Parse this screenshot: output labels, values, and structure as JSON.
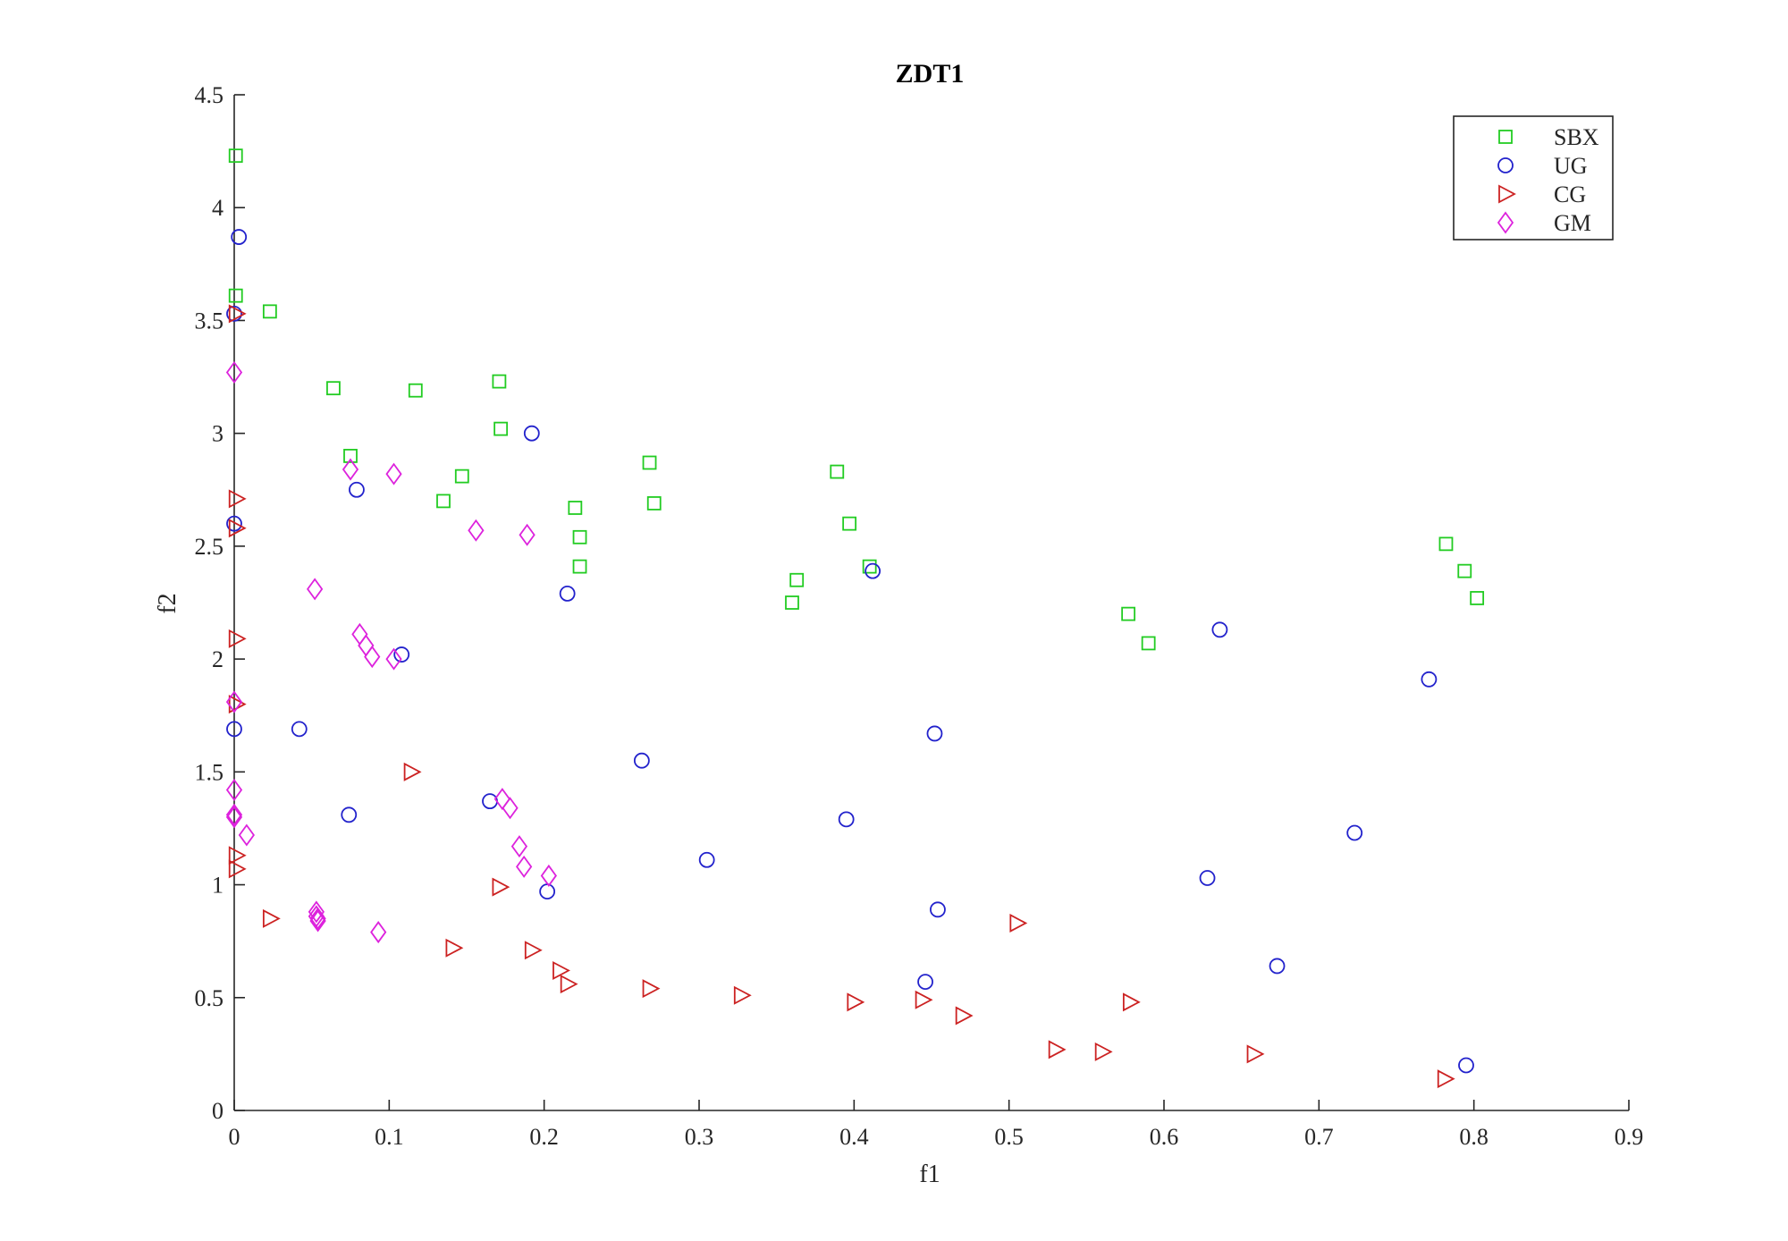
{
  "chart_data": {
    "type": "scatter",
    "title": "ZDT1",
    "xlabel": "f1",
    "ylabel": "f2",
    "xlim": [
      0,
      0.9
    ],
    "ylim": [
      0,
      4.5
    ],
    "xticks": [
      "0",
      "0.1",
      "0.2",
      "0.3",
      "0.4",
      "0.5",
      "0.6",
      "0.7",
      "0.8",
      "0.9"
    ],
    "yticks": [
      "0",
      "0.5",
      "1",
      "1.5",
      "2",
      "2.5",
      "3",
      "3.5",
      "4",
      "4.5"
    ],
    "legend_position": "top-right",
    "series": [
      {
        "name": "SBX",
        "marker": "square",
        "color": "#22cc22",
        "points": [
          [
            0.001,
            4.23
          ],
          [
            0.001,
            3.61
          ],
          [
            0.023,
            3.54
          ],
          [
            0.064,
            3.2
          ],
          [
            0.117,
            3.19
          ],
          [
            0.171,
            3.23
          ],
          [
            0.172,
            3.02
          ],
          [
            0.075,
            2.9
          ],
          [
            0.147,
            2.81
          ],
          [
            0.135,
            2.7
          ],
          [
            0.268,
            2.87
          ],
          [
            0.271,
            2.69
          ],
          [
            0.22,
            2.67
          ],
          [
            0.223,
            2.54
          ],
          [
            0.223,
            2.41
          ],
          [
            0.389,
            2.83
          ],
          [
            0.397,
            2.6
          ],
          [
            0.41,
            2.41
          ],
          [
            0.363,
            2.35
          ],
          [
            0.36,
            2.25
          ],
          [
            0.577,
            2.2
          ],
          [
            0.59,
            2.07
          ],
          [
            0.782,
            2.51
          ],
          [
            0.794,
            2.39
          ],
          [
            0.802,
            2.27
          ]
        ]
      },
      {
        "name": "UG",
        "marker": "circle",
        "color": "#2222cc",
        "points": [
          [
            0.003,
            3.87
          ],
          [
            0.0,
            3.53
          ],
          [
            0.192,
            3.0
          ],
          [
            0.079,
            2.75
          ],
          [
            0.0,
            2.6
          ],
          [
            0.215,
            2.29
          ],
          [
            0.412,
            2.39
          ],
          [
            0.108,
            2.02
          ],
          [
            0.636,
            2.13
          ],
          [
            0.771,
            1.91
          ],
          [
            0.0,
            1.69
          ],
          [
            0.042,
            1.69
          ],
          [
            0.452,
            1.67
          ],
          [
            0.263,
            1.55
          ],
          [
            0.165,
            1.37
          ],
          [
            0.074,
            1.31
          ],
          [
            0.395,
            1.29
          ],
          [
            0.723,
            1.23
          ],
          [
            0.305,
            1.11
          ],
          [
            0.628,
            1.03
          ],
          [
            0.202,
            0.97
          ],
          [
            0.454,
            0.89
          ],
          [
            0.673,
            0.64
          ],
          [
            0.446,
            0.57
          ],
          [
            0.795,
            0.2
          ]
        ]
      },
      {
        "name": "CG",
        "marker": "triangle-right",
        "color": "#cc2222",
        "points": [
          [
            0.001,
            3.53
          ],
          [
            0.001,
            2.71
          ],
          [
            0.001,
            2.58
          ],
          [
            0.001,
            2.09
          ],
          [
            0.001,
            1.8
          ],
          [
            0.114,
            1.5
          ],
          [
            0.001,
            1.13
          ],
          [
            0.001,
            1.07
          ],
          [
            0.171,
            0.99
          ],
          [
            0.023,
            0.85
          ],
          [
            0.505,
            0.83
          ],
          [
            0.141,
            0.72
          ],
          [
            0.192,
            0.71
          ],
          [
            0.21,
            0.62
          ],
          [
            0.215,
            0.56
          ],
          [
            0.268,
            0.54
          ],
          [
            0.327,
            0.51
          ],
          [
            0.4,
            0.48
          ],
          [
            0.444,
            0.49
          ],
          [
            0.578,
            0.48
          ],
          [
            0.47,
            0.42
          ],
          [
            0.53,
            0.27
          ],
          [
            0.56,
            0.26
          ],
          [
            0.658,
            0.25
          ],
          [
            0.781,
            0.14
          ]
        ]
      },
      {
        "name": "GM",
        "marker": "diamond",
        "color": "#dd22dd",
        "points": [
          [
            0.0,
            3.27
          ],
          [
            0.075,
            2.84
          ],
          [
            0.103,
            2.82
          ],
          [
            0.156,
            2.57
          ],
          [
            0.189,
            2.55
          ],
          [
            0.052,
            2.31
          ],
          [
            0.081,
            2.11
          ],
          [
            0.085,
            2.06
          ],
          [
            0.089,
            2.01
          ],
          [
            0.103,
            2.0
          ],
          [
            0.0,
            1.81
          ],
          [
            0.0,
            1.42
          ],
          [
            0.0,
            1.31
          ],
          [
            0.0,
            1.3
          ],
          [
            0.008,
            1.22
          ],
          [
            0.173,
            1.38
          ],
          [
            0.178,
            1.34
          ],
          [
            0.184,
            1.17
          ],
          [
            0.187,
            1.08
          ],
          [
            0.203,
            1.04
          ],
          [
            0.053,
            0.88
          ],
          [
            0.053,
            0.86
          ],
          [
            0.054,
            0.84
          ],
          [
            0.054,
            0.85
          ],
          [
            0.093,
            0.79
          ]
        ]
      }
    ]
  }
}
